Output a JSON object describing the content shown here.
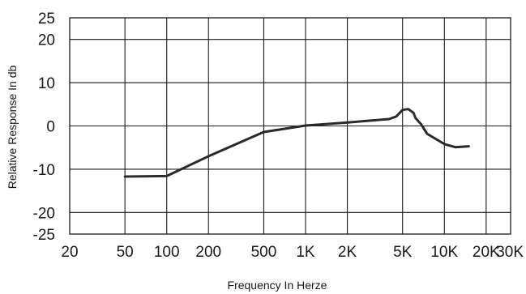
{
  "chart_data": {
    "type": "line",
    "title": "",
    "xlabel": "Frequency In Herze",
    "ylabel": "Relative Response In db",
    "x_scale": "log",
    "xlim": [
      20,
      30000
    ],
    "ylim": [
      -25,
      25
    ],
    "grid": true,
    "x_ticks": [
      {
        "value": 20,
        "label": "20"
      },
      {
        "value": 50,
        "label": "50"
      },
      {
        "value": 100,
        "label": "100"
      },
      {
        "value": 200,
        "label": "200"
      },
      {
        "value": 500,
        "label": "500"
      },
      {
        "value": 1000,
        "label": "1K"
      },
      {
        "value": 2000,
        "label": "2K"
      },
      {
        "value": 5000,
        "label": "5K"
      },
      {
        "value": 10000,
        "label": "10K"
      },
      {
        "value": 20000,
        "label": "20K"
      },
      {
        "value": 30000,
        "label": "30K"
      }
    ],
    "y_ticks": [
      {
        "value": 25,
        "label": "25"
      },
      {
        "value": 20,
        "label": "20"
      },
      {
        "value": 10,
        "label": "10"
      },
      {
        "value": 0,
        "label": "0"
      },
      {
        "value": -10,
        "label": "-10"
      },
      {
        "value": -20,
        "label": "-20"
      },
      {
        "value": -25,
        "label": "-25"
      }
    ],
    "series": [
      {
        "color": "#2a2a2a",
        "points": [
          {
            "x": 50,
            "y": -11.7
          },
          {
            "x": 100,
            "y": -11.6
          },
          {
            "x": 200,
            "y": -7.0
          },
          {
            "x": 500,
            "y": -1.4
          },
          {
            "x": 1000,
            "y": 0.1
          },
          {
            "x": 2000,
            "y": 0.8
          },
          {
            "x": 4000,
            "y": 1.6
          },
          {
            "x": 4500,
            "y": 2.2
          },
          {
            "x": 5000,
            "y": 3.7
          },
          {
            "x": 5500,
            "y": 3.9
          },
          {
            "x": 6000,
            "y": 3.0
          },
          {
            "x": 6200,
            "y": 1.8
          },
          {
            "x": 6800,
            "y": 0.4
          },
          {
            "x": 7500,
            "y": -1.8
          },
          {
            "x": 10000,
            "y": -4.2
          },
          {
            "x": 12000,
            "y": -4.9
          },
          {
            "x": 15000,
            "y": -4.7
          }
        ]
      }
    ]
  }
}
